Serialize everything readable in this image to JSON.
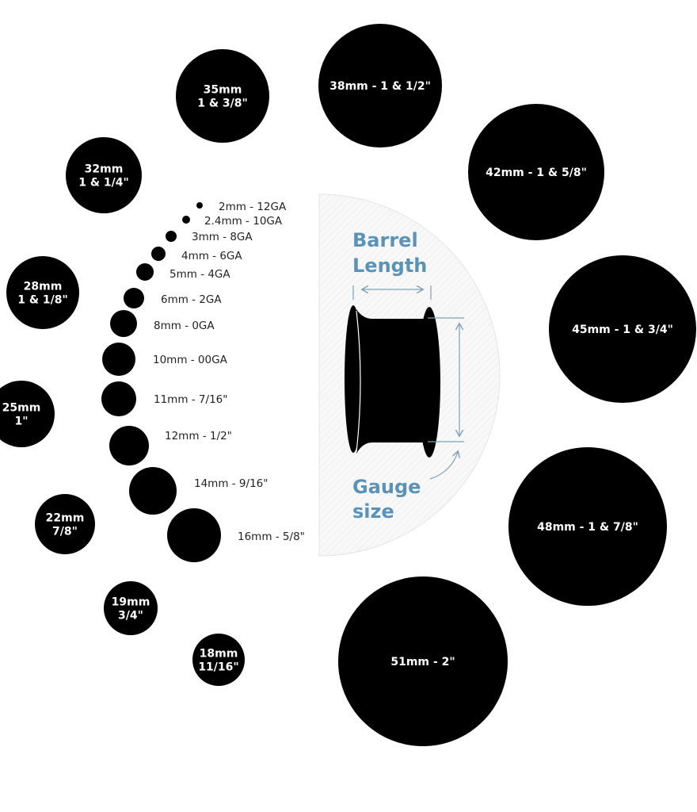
{
  "large_gauges": [
    {
      "lines": [
        "35mm",
        "1 & 3/8\""
      ]
    },
    {
      "lines": [
        "38mm - 1 & 1/2\""
      ]
    },
    {
      "lines": [
        "42mm - 1 & 5/8\""
      ]
    },
    {
      "lines": [
        "45mm - 1 & 3/4\""
      ]
    },
    {
      "lines": [
        "48mm - 1 & 7/8\""
      ]
    },
    {
      "lines": [
        "51mm - 2\""
      ]
    },
    {
      "lines": [
        "32mm",
        "1 & 1/4\""
      ]
    },
    {
      "lines": [
        "28mm",
        "1 & 1/8\""
      ]
    },
    {
      "lines": [
        "25mm",
        "1\""
      ]
    },
    {
      "lines": [
        "22mm",
        "7/8\""
      ]
    },
    {
      "lines": [
        "19mm",
        "3/4\""
      ]
    },
    {
      "lines": [
        "18mm",
        "11/16\""
      ]
    }
  ],
  "small_gauges": [
    "2mm - 12GA",
    "2.4mm - 10GA",
    "3mm - 8GA",
    "4mm - 6GA",
    "5mm - 4GA",
    "6mm - 2GA",
    "8mm - 0GA",
    "10mm - 00GA",
    "11mm - 7/16\"",
    "12mm - 1/2\"",
    "14mm - 9/16\"",
    "16mm - 5/8\""
  ],
  "diagram": {
    "barrel_label": [
      "Barrel",
      "Length"
    ],
    "gauge_label": [
      "Gauge",
      "size"
    ],
    "accent_color": "#5b93b8"
  }
}
